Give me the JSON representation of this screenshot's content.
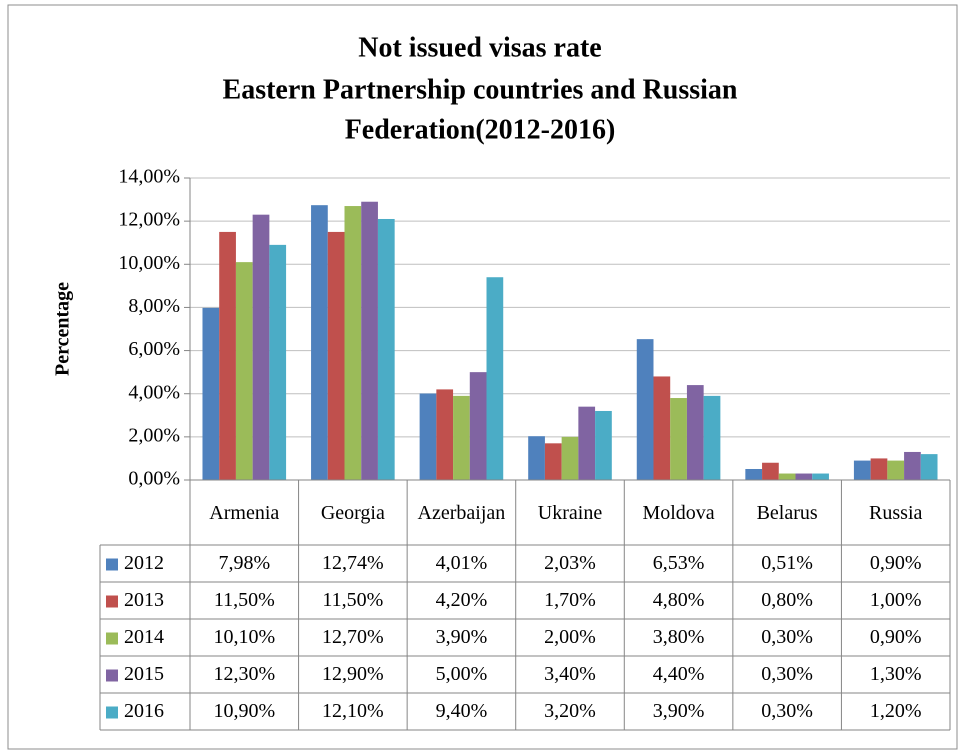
{
  "chart_data": {
    "type": "bar",
    "title": [
      "Not issued visas rate",
      "Eastern Partnership countries and Russian",
      "Federation(2012-2016)"
    ],
    "y_label": "Percentage",
    "categories": [
      "Armenia",
      "Georgia",
      "Azerbaijan",
      "Ukraine",
      "Moldova",
      "Belarus",
      "Russia"
    ],
    "ylim": [
      0,
      14
    ],
    "yticks": [
      {
        "value": 0,
        "label": "0,00%"
      },
      {
        "value": 2,
        "label": "2,00%"
      },
      {
        "value": 4,
        "label": "4,00%"
      },
      {
        "value": 6,
        "label": "6,00%"
      },
      {
        "value": 8,
        "label": "8,00%"
      },
      {
        "value": 10,
        "label": "10,00%"
      },
      {
        "value": 12,
        "label": "12,00%"
      },
      {
        "value": 14,
        "label": "14,00%"
      }
    ],
    "grid": true,
    "legend": "data-table",
    "series": [
      {
        "name": "2012",
        "color": "#4f81bd",
        "values": [
          7.98,
          12.74,
          4.01,
          2.03,
          6.53,
          0.51,
          0.9
        ],
        "value_labels": [
          "7,98%",
          "12,74%",
          "4,01%",
          "2,03%",
          "6,53%",
          "0,51%",
          "0,90%"
        ]
      },
      {
        "name": "2013",
        "color": "#c0504d",
        "values": [
          11.5,
          11.5,
          4.2,
          1.7,
          4.8,
          0.8,
          1.0
        ],
        "value_labels": [
          "11,50%",
          "11,50%",
          "4,20%",
          "1,70%",
          "4,80%",
          "0,80%",
          "1,00%"
        ]
      },
      {
        "name": "2014",
        "color": "#9bbb59",
        "values": [
          10.1,
          12.7,
          3.9,
          2.0,
          3.8,
          0.3,
          0.9
        ],
        "value_labels": [
          "10,10%",
          "12,70%",
          "3,90%",
          "2,00%",
          "3,80%",
          "0,30%",
          "0,90%"
        ]
      },
      {
        "name": "2015",
        "color": "#8064a2",
        "values": [
          12.3,
          12.9,
          5.0,
          3.4,
          4.4,
          0.3,
          1.3
        ],
        "value_labels": [
          "12,30%",
          "12,90%",
          "5,00%",
          "3,40%",
          "4,40%",
          "0,30%",
          "1,30%"
        ]
      },
      {
        "name": "2016",
        "color": "#4bacc6",
        "values": [
          10.9,
          12.1,
          9.4,
          3.2,
          3.9,
          0.3,
          1.2
        ],
        "value_labels": [
          "10,90%",
          "12,10%",
          "9,40%",
          "3,20%",
          "3,90%",
          "0,30%",
          "1,20%"
        ]
      }
    ]
  }
}
